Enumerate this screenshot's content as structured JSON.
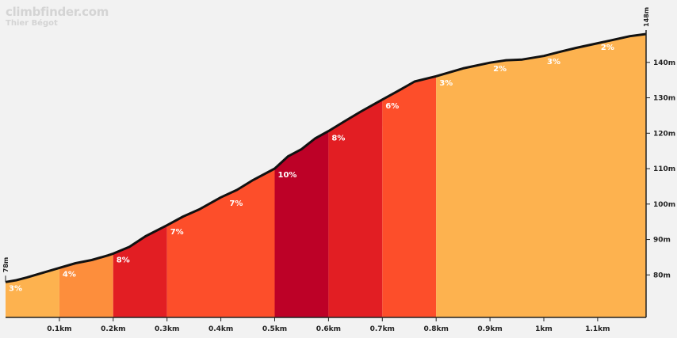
{
  "brand": {
    "site": "climbfinder.com",
    "climb_name": "Thier Bégot"
  },
  "chart_data": {
    "type": "area",
    "title": "Thier Bégot",
    "x_unit": "km",
    "y_unit": "m",
    "xlim": [
      0,
      1.19
    ],
    "ylim": [
      68,
      152
    ],
    "start_label": "78m",
    "end_label": "148m",
    "x_ticks": [
      {
        "value": 0.1,
        "label": "0.1km"
      },
      {
        "value": 0.2,
        "label": "0.2km"
      },
      {
        "value": 0.3,
        "label": "0.3km"
      },
      {
        "value": 0.4,
        "label": "0.4km"
      },
      {
        "value": 0.5,
        "label": "0.5km"
      },
      {
        "value": 0.6,
        "label": "0.6km"
      },
      {
        "value": 0.7,
        "label": "0.7km"
      },
      {
        "value": 0.8,
        "label": "0.8km"
      },
      {
        "value": 0.9,
        "label": "0.9km"
      },
      {
        "value": 1.0,
        "label": "1km"
      },
      {
        "value": 1.1,
        "label": "1.1km"
      }
    ],
    "y_ticks": [
      {
        "value": 80,
        "label": "80m"
      },
      {
        "value": 90,
        "label": "90m"
      },
      {
        "value": 100,
        "label": "100m"
      },
      {
        "value": 110,
        "label": "110m"
      },
      {
        "value": 120,
        "label": "120m"
      },
      {
        "value": 130,
        "label": "130m"
      },
      {
        "value": 140,
        "label": "140m"
      }
    ],
    "profile": [
      [
        0.0,
        78.0
      ],
      [
        0.02,
        78.5
      ],
      [
        0.04,
        79.3
      ],
      [
        0.06,
        80.2
      ],
      [
        0.08,
        81.1
      ],
      [
        0.1,
        82.0
      ],
      [
        0.13,
        83.3
      ],
      [
        0.16,
        84.2
      ],
      [
        0.19,
        85.5
      ],
      [
        0.2,
        86.0
      ],
      [
        0.23,
        87.9
      ],
      [
        0.26,
        90.9
      ],
      [
        0.3,
        94.0
      ],
      [
        0.33,
        96.5
      ],
      [
        0.36,
        98.5
      ],
      [
        0.4,
        101.9
      ],
      [
        0.43,
        104.0
      ],
      [
        0.46,
        106.8
      ],
      [
        0.5,
        110.0
      ],
      [
        0.525,
        113.5
      ],
      [
        0.55,
        115.5
      ],
      [
        0.575,
        118.5
      ],
      [
        0.6,
        120.6
      ],
      [
        0.63,
        123.4
      ],
      [
        0.66,
        126.1
      ],
      [
        0.7,
        129.5
      ],
      [
        0.73,
        132.0
      ],
      [
        0.76,
        134.6
      ],
      [
        0.8,
        136.1
      ],
      [
        0.85,
        138.3
      ],
      [
        0.9,
        139.9
      ],
      [
        0.93,
        140.6
      ],
      [
        0.96,
        140.8
      ],
      [
        1.0,
        141.8
      ],
      [
        1.03,
        143.0
      ],
      [
        1.06,
        144.1
      ],
      [
        1.1,
        145.4
      ],
      [
        1.13,
        146.4
      ],
      [
        1.16,
        147.4
      ],
      [
        1.19,
        148.0
      ]
    ],
    "segments": [
      {
        "x0": 0.0,
        "x1": 0.1,
        "gradient": "3%",
        "color": "#fdb24f"
      },
      {
        "x0": 0.1,
        "x1": 0.2,
        "gradient": "4%",
        "color": "#fd8e3c"
      },
      {
        "x0": 0.2,
        "x1": 0.3,
        "gradient": "8%",
        "color": "#e21e23"
      },
      {
        "x0": 0.3,
        "x1": 0.5,
        "gradient": "7%",
        "color": "#fd4e2a"
      },
      {
        "x0": 0.5,
        "x1": 0.6,
        "gradient": "10%",
        "color": "#bd0127"
      },
      {
        "x0": 0.6,
        "x1": 0.7,
        "gradient": "8%",
        "color": "#e21e23"
      },
      {
        "x0": 0.7,
        "x1": 0.8,
        "gradient": "6%",
        "color": "#fd4e2a"
      },
      {
        "x0": 0.8,
        "x1": 1.19,
        "gradient": "",
        "color": "#fdb24f"
      }
    ],
    "gradient_labels": [
      {
        "x": 0.0,
        "y": 75.5,
        "text": "3%"
      },
      {
        "x": 0.1,
        "y": 79.5,
        "text": "4%"
      },
      {
        "x": 0.2,
        "y": 83.5,
        "text": "8%"
      },
      {
        "x": 0.3,
        "y": 91.5,
        "text": "7%"
      },
      {
        "x": 0.41,
        "y": 99.5,
        "text": "7%"
      },
      {
        "x": 0.5,
        "y": 107.5,
        "text": "10%"
      },
      {
        "x": 0.6,
        "y": 118.0,
        "text": "8%"
      },
      {
        "x": 0.7,
        "y": 127.0,
        "text": "6%"
      },
      {
        "x": 0.8,
        "y": 133.5,
        "text": "3%"
      },
      {
        "x": 0.9,
        "y": 137.5,
        "text": "2%"
      },
      {
        "x": 1.0,
        "y": 139.5,
        "text": "3%"
      },
      {
        "x": 1.1,
        "y": 143.5,
        "text": "2%"
      }
    ],
    "colors": {
      "background": "#f2f2f2",
      "outline": "#111111",
      "axis": "#222222"
    },
    "grid": false,
    "legend": "none"
  }
}
